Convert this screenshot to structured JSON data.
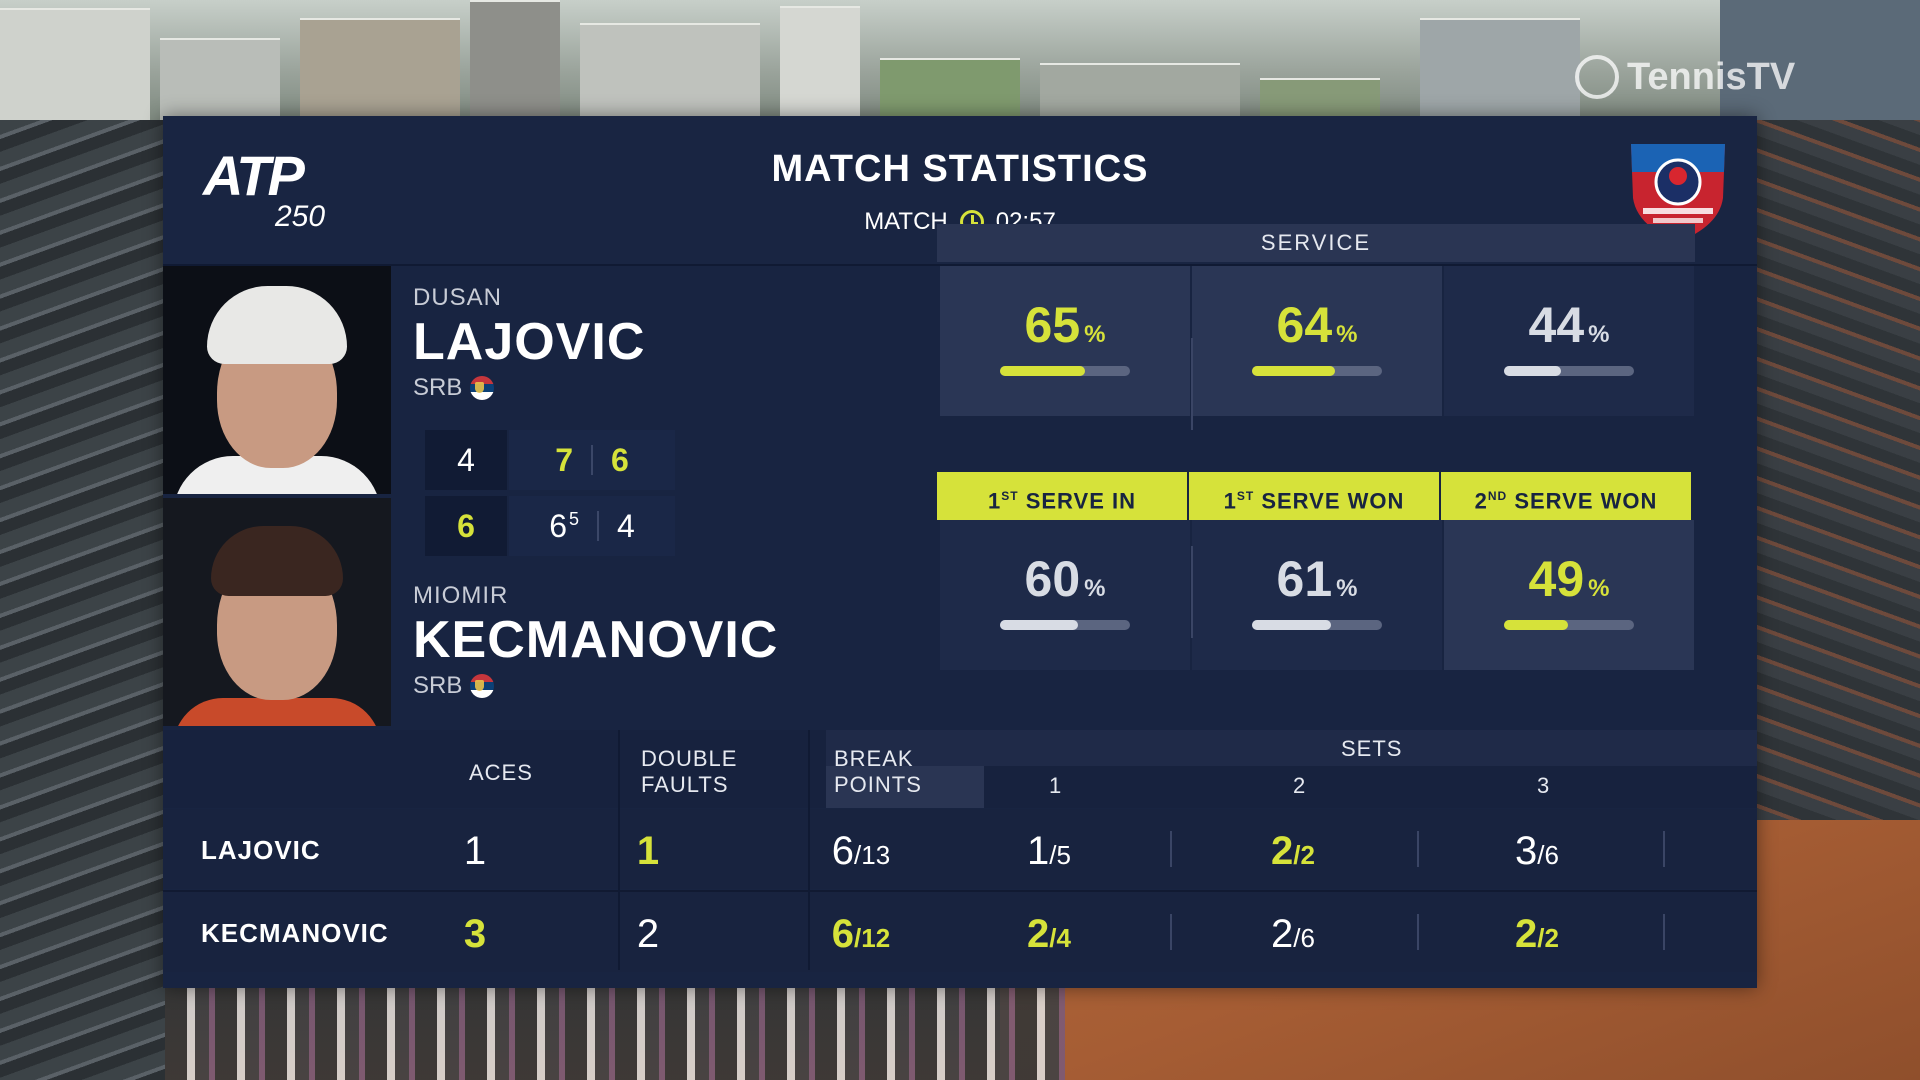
{
  "broadcaster": {
    "logo_text": "TennisTV"
  },
  "header": {
    "logo_main": "ATP",
    "logo_tier": "250",
    "title": "MATCH STATISTICS",
    "match_label": "MATCH",
    "match_time": "02:57",
    "tournament_logo": "srpska-open-logo"
  },
  "players": [
    {
      "first": "DUSAN",
      "last": "LAJOVIC",
      "country": "SRB",
      "sets": [
        "4",
        "7",
        "6"
      ],
      "tiebreaks": [
        "",
        "",
        ""
      ],
      "set_won": [
        false,
        true,
        true
      ]
    },
    {
      "first": "MIOMIR",
      "last": "KECMANOVIC",
      "country": "SRB",
      "sets": [
        "6",
        "6",
        "4"
      ],
      "tiebreaks": [
        "",
        "5",
        ""
      ],
      "set_won": [
        true,
        false,
        false
      ]
    }
  ],
  "service": {
    "title": "SERVICE",
    "labels": [
      {
        "ord": "1",
        "sup": "ST",
        "text": "SERVE IN"
      },
      {
        "ord": "1",
        "sup": "ST",
        "text": "SERVE WON"
      },
      {
        "ord": "2",
        "sup": "ND",
        "text": "SERVE WON"
      }
    ],
    "player1": [
      {
        "value": "65",
        "pct": "%",
        "fill": 0.65,
        "leader": true
      },
      {
        "value": "64",
        "pct": "%",
        "fill": 0.64,
        "leader": true
      },
      {
        "value": "44",
        "pct": "%",
        "fill": 0.44,
        "leader": false
      }
    ],
    "player2": [
      {
        "value": "60",
        "pct": "%",
        "fill": 0.6,
        "leader": false
      },
      {
        "value": "61",
        "pct": "%",
        "fill": 0.61,
        "leader": false
      },
      {
        "value": "49",
        "pct": "%",
        "fill": 0.49,
        "leader": true
      }
    ]
  },
  "table": {
    "headers": {
      "aces": "ACES",
      "double_faults_1": "DOUBLE",
      "double_faults_2": "FAULTS",
      "break_points_1": "BREAK",
      "break_points_2": "POINTS",
      "sets": "SETS",
      "set_numbers": [
        "1",
        "2",
        "3"
      ]
    },
    "rows": [
      {
        "name": "LAJOVIC",
        "aces": "1",
        "aces_hl": false,
        "df": "1",
        "df_hl": true,
        "bp": "6",
        "bp_of": "/13",
        "bp_hl": false,
        "sets": [
          {
            "a": "1",
            "b": "/5",
            "hl": false
          },
          {
            "a": "2",
            "b": "/2",
            "hl": true
          },
          {
            "a": "3",
            "b": "/6",
            "hl": false
          }
        ]
      },
      {
        "name": "KECMANOVIC",
        "aces": "3",
        "aces_hl": true,
        "df": "2",
        "df_hl": false,
        "bp": "6",
        "bp_of": "/12",
        "bp_hl": true,
        "sets": [
          {
            "a": "2",
            "b": "/4",
            "hl": true
          },
          {
            "a": "2",
            "b": "/6",
            "hl": false
          },
          {
            "a": "2",
            "b": "/2",
            "hl": true
          }
        ]
      }
    ]
  },
  "colors": {
    "accent": "#d6e23a",
    "panel": "#182441",
    "header": "#2a3553"
  }
}
